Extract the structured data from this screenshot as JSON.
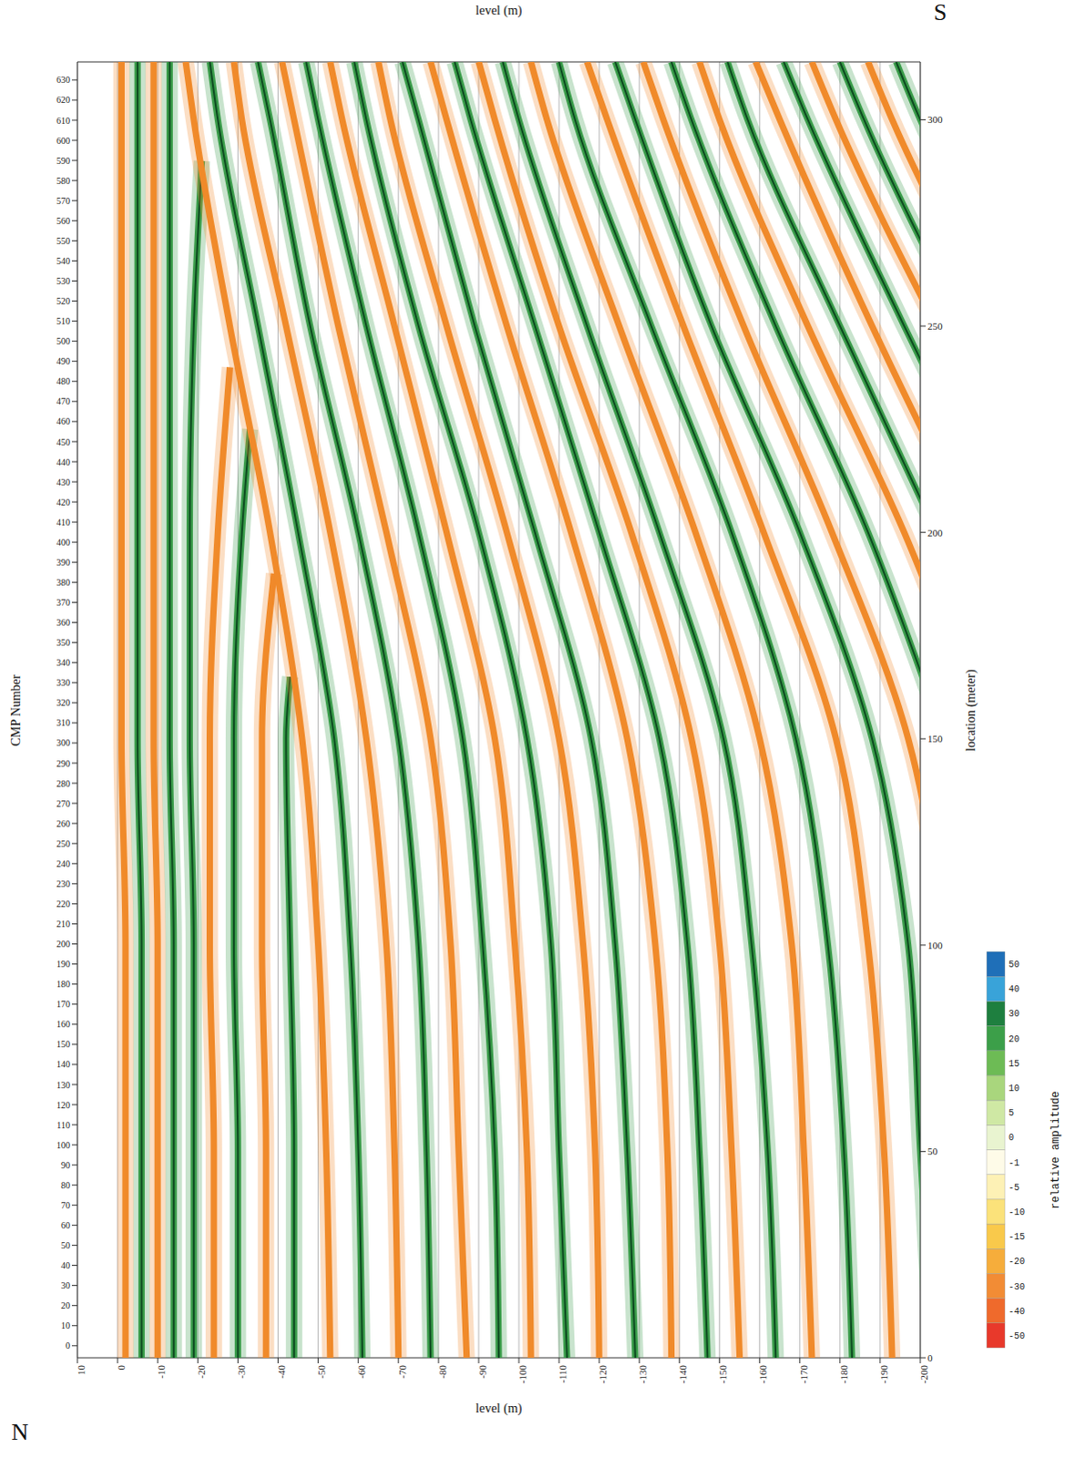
{
  "chart_data": {
    "type": "line",
    "x_label": "level (m)",
    "y_label": "location (meter)",
    "y2_label": "CMP Number",
    "annotations": [
      "N",
      "S"
    ],
    "xlim": [
      10,
      -200
    ],
    "xticks": [
      10,
      0,
      -10,
      -20,
      -30,
      -40,
      -50,
      -60,
      -70,
      -80,
      -90,
      -100,
      -110,
      -120,
      -130,
      -140,
      -150,
      -160,
      -170,
      -180,
      -190,
      -200
    ],
    "ylim": [
      0,
      314
    ],
    "yticks": [
      0,
      50,
      100,
      150,
      200,
      250,
      300
    ],
    "y2lim": [
      -6,
      639
    ],
    "y2ticks": [
      0,
      10,
      20,
      30,
      40,
      50,
      60,
      70,
      80,
      90,
      100,
      110,
      120,
      130,
      140,
      150,
      160,
      170,
      180,
      190,
      200,
      210,
      220,
      230,
      240,
      250,
      260,
      270,
      280,
      290,
      300,
      310,
      320,
      330,
      340,
      350,
      360,
      370,
      380,
      390,
      400,
      410,
      420,
      430,
      440,
      450,
      460,
      470,
      480,
      490,
      500,
      510,
      520,
      530,
      540,
      550,
      560,
      570,
      580,
      590,
      600,
      610,
      620,
      630
    ],
    "grid": true,
    "series": [
      {
        "color": "#f08a2a",
        "x": [
          -2,
          -2,
          -2,
          -1,
          -1,
          -1,
          -1,
          -1
        ],
        "y": [
          0,
          50,
          100,
          150,
          200,
          250,
          300,
          314
        ]
      },
      {
        "color": "#3a9c4a",
        "x": [
          -6,
          -6,
          -6,
          -5,
          -5,
          -5,
          -5,
          -5
        ],
        "y": [
          0,
          50,
          100,
          150,
          200,
          250,
          300,
          314
        ]
      },
      {
        "color": "#f08a2a",
        "x": [
          -10,
          -10,
          -10,
          -9,
          -9,
          -9,
          -9,
          -9
        ],
        "y": [
          0,
          50,
          100,
          150,
          200,
          250,
          300,
          314
        ]
      },
      {
        "color": "#3a9c4a",
        "x": [
          -14,
          -14,
          -14,
          -13,
          -13,
          -13,
          -13,
          -13
        ],
        "y": [
          0,
          50,
          100,
          150,
          200,
          250,
          300,
          314
        ]
      },
      {
        "color": "#3a9c4a",
        "x": [
          -19,
          -19,
          -19,
          -18,
          -18,
          -19,
          -21
        ],
        "y": [
          0,
          50,
          100,
          150,
          200,
          250,
          290
        ]
      },
      {
        "color": "#f08a2a",
        "x": [
          -24,
          -24,
          -23,
          -23,
          -25,
          -28
        ],
        "y": [
          0,
          50,
          100,
          150,
          200,
          240
        ]
      },
      {
        "color": "#3a9c4a",
        "x": [
          -30,
          -30,
          -29,
          -29,
          -31,
          -33
        ],
        "y": [
          0,
          50,
          100,
          150,
          200,
          225
        ]
      },
      {
        "color": "#f08a2a",
        "x": [
          -37,
          -37,
          -36,
          -36,
          -39
        ],
        "y": [
          0,
          50,
          100,
          150,
          190
        ]
      },
      {
        "color": "#3a9c4a",
        "x": [
          -44,
          -44,
          -43,
          -42,
          -43
        ],
        "y": [
          0,
          50,
          100,
          150,
          165
        ]
      },
      {
        "color": "#f08a2a",
        "x": [
          -53,
          -52,
          -50,
          -46,
          -38,
          -28,
          -19,
          -17
        ],
        "y": [
          0,
          50,
          100,
          150,
          200,
          250,
          300,
          314
        ]
      },
      {
        "color": "#3a9c4a",
        "x": [
          -61,
          -60,
          -58,
          -54,
          -45,
          -35,
          -25,
          -23
        ],
        "y": [
          0,
          50,
          100,
          150,
          200,
          250,
          300,
          314
        ]
      },
      {
        "color": "#f08a2a",
        "x": [
          -70,
          -69,
          -67,
          -62,
          -53,
          -42,
          -31,
          -29
        ],
        "y": [
          0,
          50,
          100,
          150,
          200,
          250,
          300,
          314
        ]
      },
      {
        "color": "#3a9c4a",
        "x": [
          -78,
          -77,
          -75,
          -70,
          -60,
          -48,
          -38,
          -35
        ],
        "y": [
          0,
          50,
          100,
          150,
          200,
          250,
          300,
          314
        ]
      },
      {
        "color": "#f08a2a",
        "x": [
          -87,
          -85,
          -83,
          -78,
          -67,
          -55,
          -44,
          -41
        ],
        "y": [
          0,
          50,
          100,
          150,
          200,
          250,
          300,
          314
        ]
      },
      {
        "color": "#3a9c4a",
        "x": [
          -95,
          -94,
          -91,
          -86,
          -75,
          -62,
          -50,
          -47
        ],
        "y": [
          0,
          50,
          100,
          150,
          200,
          250,
          300,
          314
        ]
      },
      {
        "color": "#f08a2a",
        "x": [
          -103,
          -102,
          -99,
          -94,
          -82,
          -69,
          -56,
          -53
        ],
        "y": [
          0,
          50,
          100,
          150,
          200,
          250,
          300,
          314
        ]
      },
      {
        "color": "#3a9c4a",
        "x": [
          -112,
          -110,
          -108,
          -102,
          -90,
          -75,
          -62,
          -59
        ],
        "y": [
          0,
          50,
          100,
          150,
          200,
          250,
          300,
          314
        ]
      },
      {
        "color": "#f08a2a",
        "x": [
          -120,
          -119,
          -116,
          -110,
          -97,
          -82,
          -68,
          -65
        ],
        "y": [
          0,
          50,
          100,
          150,
          200,
          250,
          300,
          314
        ]
      },
      {
        "color": "#3a9c4a",
        "x": [
          -129,
          -127,
          -124,
          -118,
          -104,
          -89,
          -75,
          -71
        ],
        "y": [
          0,
          50,
          100,
          150,
          200,
          250,
          300,
          314
        ]
      },
      {
        "color": "#f08a2a",
        "x": [
          -138,
          -137,
          -134,
          -127,
          -113,
          -97,
          -82,
          -78
        ],
        "y": [
          0,
          50,
          100,
          150,
          200,
          250,
          300,
          314
        ]
      },
      {
        "color": "#3a9c4a",
        "x": [
          -147,
          -145,
          -142,
          -135,
          -120,
          -104,
          -88,
          -84
        ],
        "y": [
          0,
          50,
          100,
          150,
          200,
          250,
          300,
          314
        ]
      },
      {
        "color": "#f08a2a",
        "x": [
          -155,
          -153,
          -150,
          -143,
          -128,
          -110,
          -94,
          -90
        ],
        "y": [
          0,
          50,
          100,
          150,
          200,
          250,
          300,
          314
        ]
      },
      {
        "color": "#3a9c4a",
        "x": [
          -164,
          -162,
          -158,
          -151,
          -135,
          -117,
          -100,
          -96
        ],
        "y": [
          0,
          50,
          100,
          150,
          200,
          250,
          300,
          314
        ]
      },
      {
        "color": "#f08a2a",
        "x": [
          -173,
          -171,
          -168,
          -160,
          -144,
          -125,
          -107,
          -103
        ],
        "y": [
          0,
          50,
          100,
          150,
          200,
          250,
          300,
          314
        ]
      },
      {
        "color": "#3a9c4a",
        "x": [
          -183,
          -181,
          -177,
          -169,
          -153,
          -133,
          -114,
          -110
        ],
        "y": [
          0,
          50,
          100,
          150,
          200,
          250,
          300,
          314
        ]
      },
      {
        "color": "#f08a2a",
        "x": [
          -193,
          -191,
          -187,
          -179,
          -161,
          -141,
          -122,
          -117
        ],
        "y": [
          0,
          50,
          100,
          150,
          200,
          250,
          300,
          314
        ]
      },
      {
        "color": "#3a9c4a",
        "x": [
          -203,
          -200,
          -197,
          -188,
          -170,
          -148,
          -129,
          -124
        ],
        "y": [
          0,
          50,
          100,
          150,
          200,
          250,
          300,
          314
        ]
      },
      {
        "color": "#f08a2a",
        "x": [
          -206,
          -197,
          -178,
          -156,
          -136,
          -131
        ],
        "y": [
          100,
          150,
          200,
          250,
          300,
          314
        ]
      },
      {
        "color": "#3a9c4a",
        "x": [
          -206,
          -187,
          -164,
          -143,
          -138
        ],
        "y": [
          150,
          200,
          250,
          300,
          314
        ]
      },
      {
        "color": "#f08a2a",
        "x": [
          -216,
          -196,
          -172,
          -150,
          -145
        ],
        "y": [
          150,
          200,
          250,
          300,
          314
        ]
      },
      {
        "color": "#3a9c4a",
        "x": [
          -204,
          -180,
          -157,
          -152
        ],
        "y": [
          200,
          250,
          300,
          314
        ]
      },
      {
        "color": "#f08a2a",
        "x": [
          -213,
          -188,
          -165,
          -159
        ],
        "y": [
          200,
          250,
          300,
          314
        ]
      },
      {
        "color": "#3a9c4a",
        "x": [
          -221,
          -196,
          -172,
          -166
        ],
        "y": [
          200,
          250,
          300,
          314
        ]
      },
      {
        "color": "#f08a2a",
        "x": [
          -204,
          -179,
          -173
        ],
        "y": [
          250,
          300,
          314
        ]
      },
      {
        "color": "#3a9c4a",
        "x": [
          -211,
          -186,
          -180
        ],
        "y": [
          250,
          300,
          314
        ]
      },
      {
        "color": "#f08a2a",
        "x": [
          -219,
          -193,
          -187
        ],
        "y": [
          250,
          300,
          314
        ]
      },
      {
        "color": "#3a9c4a",
        "x": [
          -227,
          -200,
          -194
        ],
        "y": [
          250,
          300,
          314
        ]
      }
    ],
    "colorbar": {
      "label": "relative amplitude",
      "ticks": [
        -50,
        -40,
        -30,
        -20,
        -15,
        -10,
        -5,
        -1,
        0,
        5,
        10,
        15,
        20,
        30,
        40,
        50
      ],
      "colors": [
        "#e8392b",
        "#ef6a2c",
        "#f28c35",
        "#f6ad3b",
        "#f9c94b",
        "#fbe27a",
        "#fdf1b5",
        "#fefbe8",
        "#e9f4d0",
        "#cfe8a4",
        "#a9d67d",
        "#6dbb55",
        "#3c9f49",
        "#1e7f3f",
        "#39a3d9",
        "#1f6fb8"
      ]
    }
  }
}
